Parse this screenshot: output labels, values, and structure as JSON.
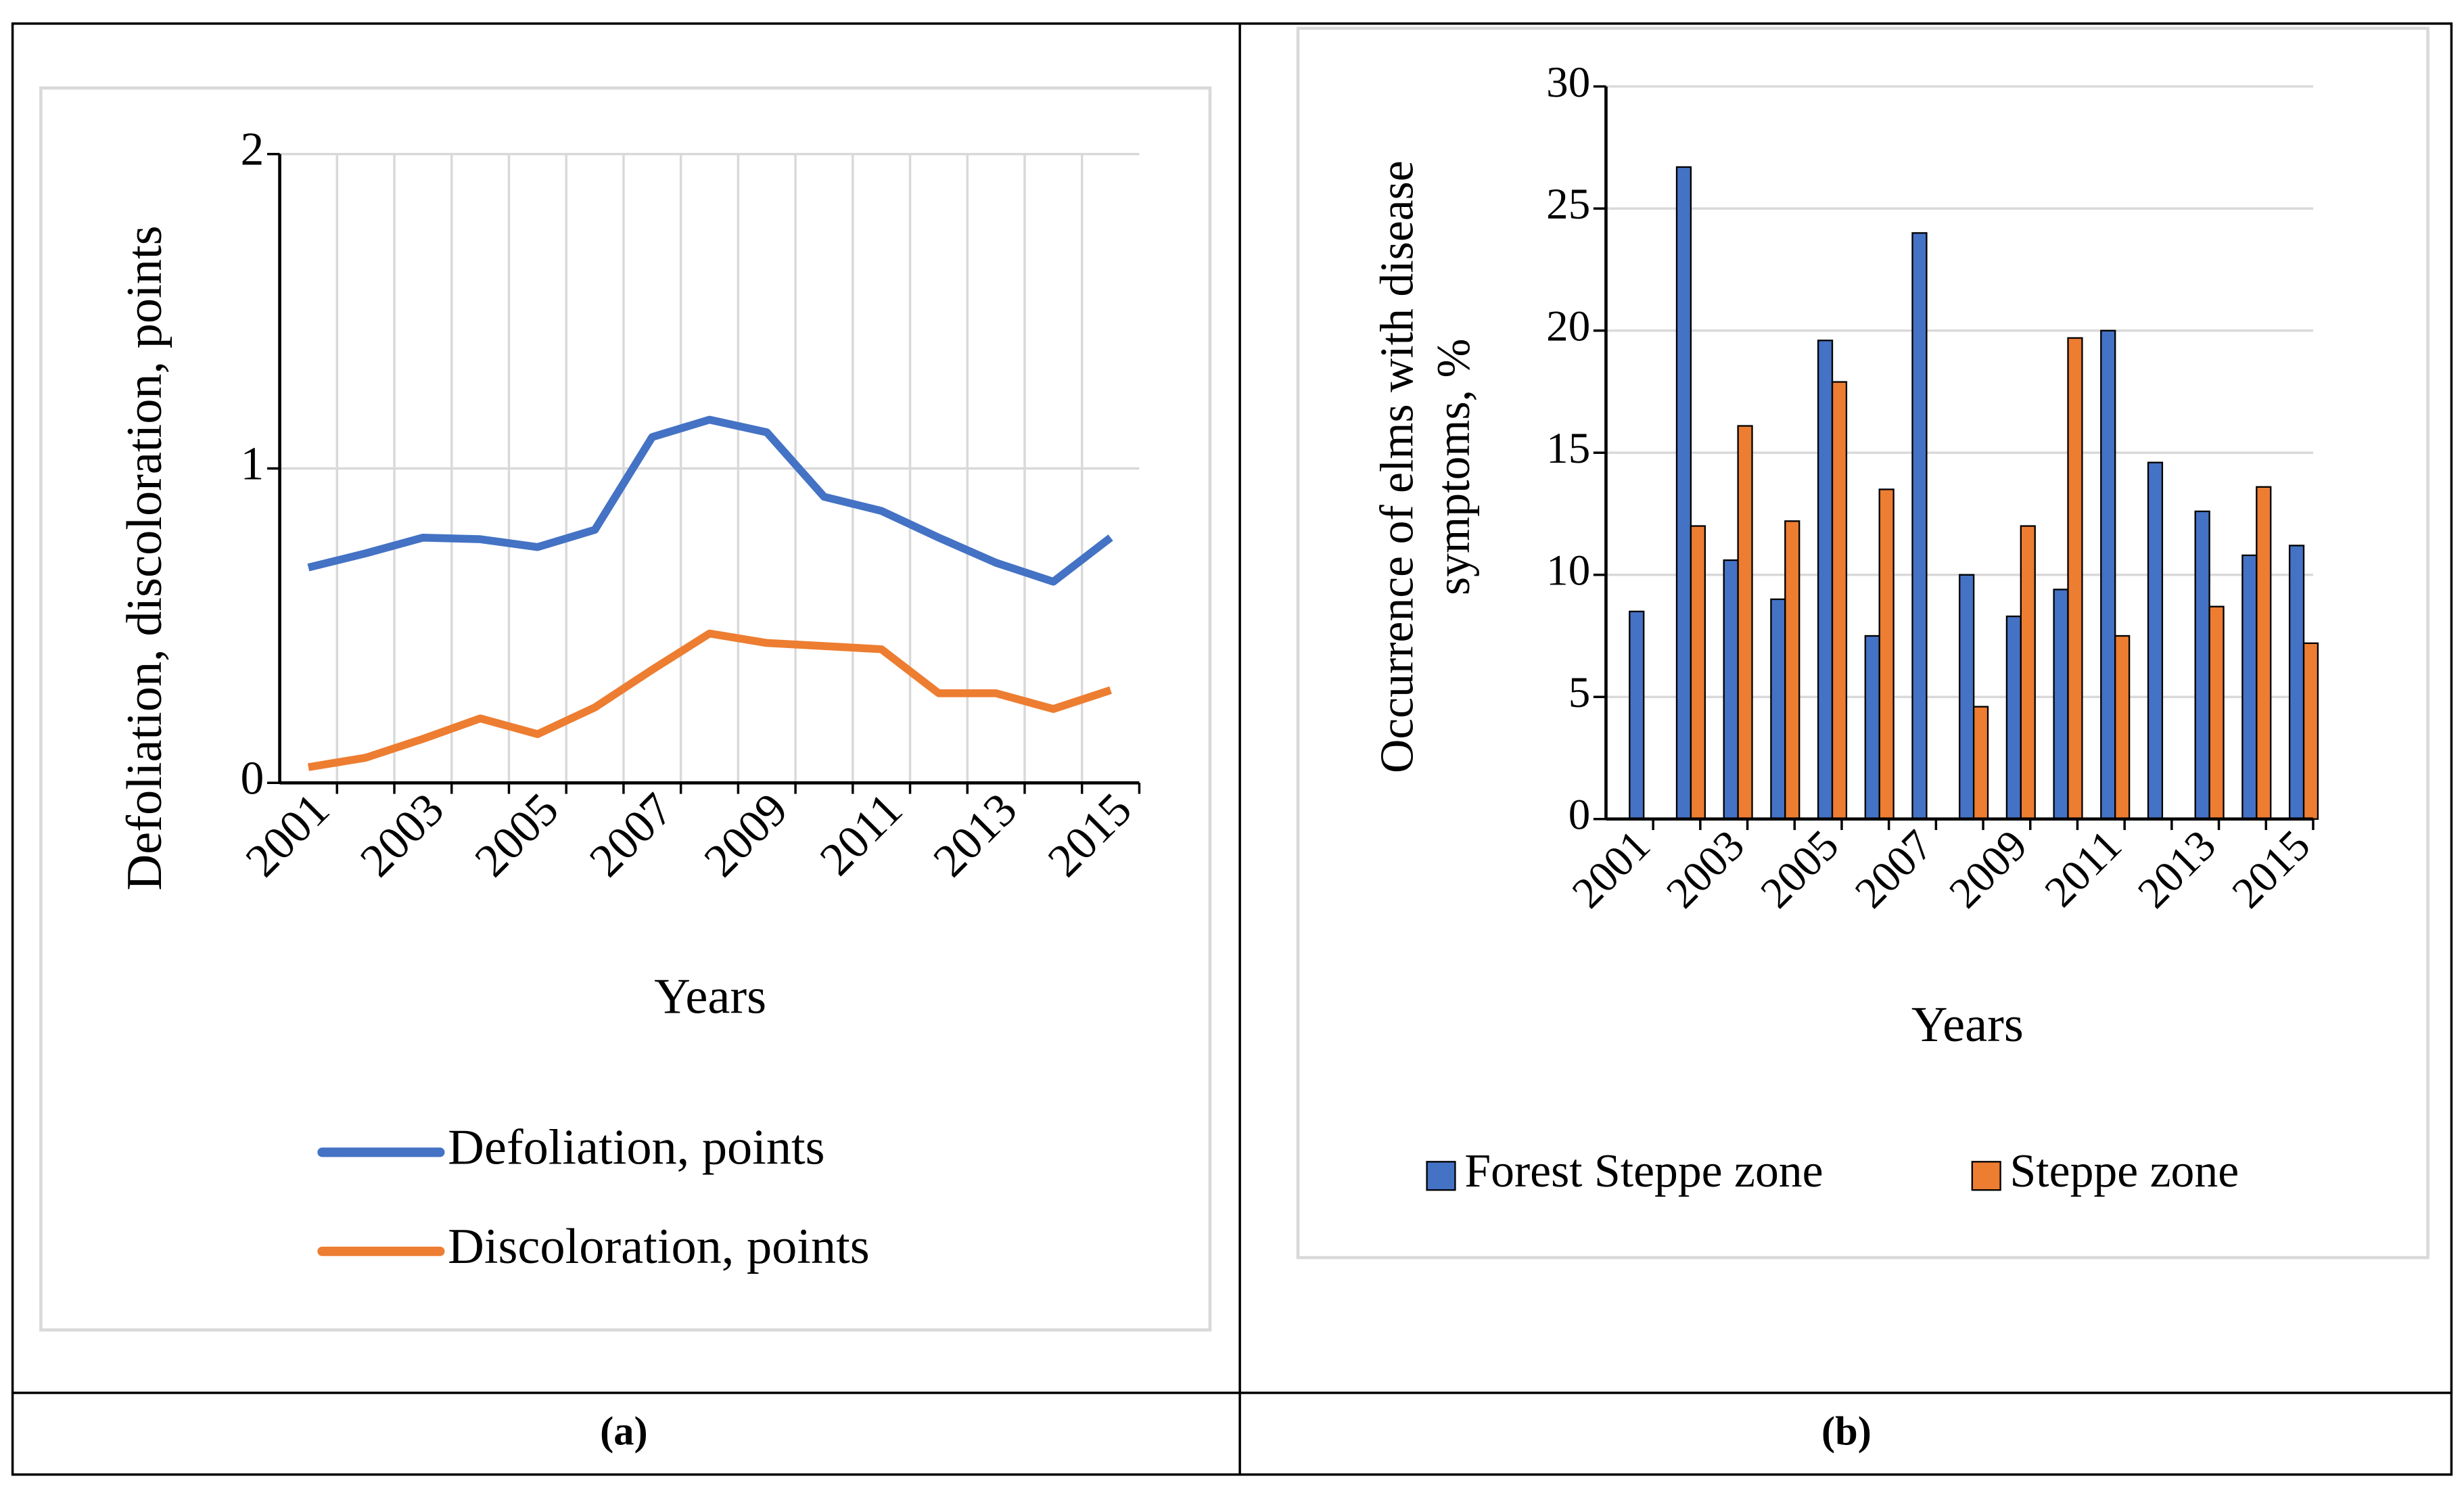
{
  "chart_data": [
    {
      "type": "line",
      "x_label": "Years",
      "y_label": "Defoliation, discoloration, points",
      "categories": [
        "2001",
        null,
        "2003",
        null,
        "2005",
        null,
        "2007",
        null,
        "2009",
        null,
        "2011",
        null,
        "2013",
        null,
        "2015"
      ],
      "series": [
        {
          "name": "Defoliation, points",
          "color": "#4472c4",
          "values": [
            0.685,
            0.73,
            0.78,
            0.775,
            0.75,
            0.805,
            1.1,
            1.155,
            1.115,
            0.91,
            0.865,
            0.78,
            0.7,
            0.64,
            0.78
          ]
        },
        {
          "name": "Discoloration, points",
          "color": "#ed7d31",
          "values": [
            0.05,
            0.08,
            0.14,
            0.205,
            0.155,
            0.24,
            0.36,
            0.475,
            0.445,
            0.435,
            0.425,
            0.285,
            0.285,
            0.235,
            0.295
          ]
        }
      ],
      "ylim": [
        0,
        2
      ],
      "yticks": [
        0,
        1,
        2
      ],
      "grid": true,
      "legend": "bottom"
    },
    {
      "type": "bar",
      "x_label": "Years",
      "y_label": [
        "Occurrence of elms with disease",
        "symptoms, %"
      ],
      "categories": [
        "2001",
        null,
        "2003",
        null,
        "2005",
        null,
        "2007",
        null,
        "2009",
        null,
        "2011",
        null,
        "2013",
        null,
        "2015"
      ],
      "series": [
        {
          "name": "Forest Steppe zone",
          "color": "#4472c4",
          "values": [
            8.5,
            26.7,
            10.6,
            9.0,
            19.6,
            7.5,
            24.0,
            10.0,
            8.3,
            9.4,
            20.0,
            14.6,
            12.6,
            10.8,
            11.2
          ]
        },
        {
          "name": "Steppe zone",
          "color": "#ed7d31",
          "values": [
            null,
            12.0,
            16.1,
            12.2,
            17.9,
            13.5,
            null,
            4.6,
            12.0,
            19.7,
            7.5,
            null,
            8.7,
            13.6,
            7.2
          ]
        }
      ],
      "ylim": [
        0,
        30
      ],
      "yticks": [
        0,
        5,
        10,
        15,
        20,
        25,
        30
      ],
      "grid": true,
      "legend": "bottom"
    }
  ],
  "panel_labels": [
    "(a)",
    "(b)"
  ]
}
